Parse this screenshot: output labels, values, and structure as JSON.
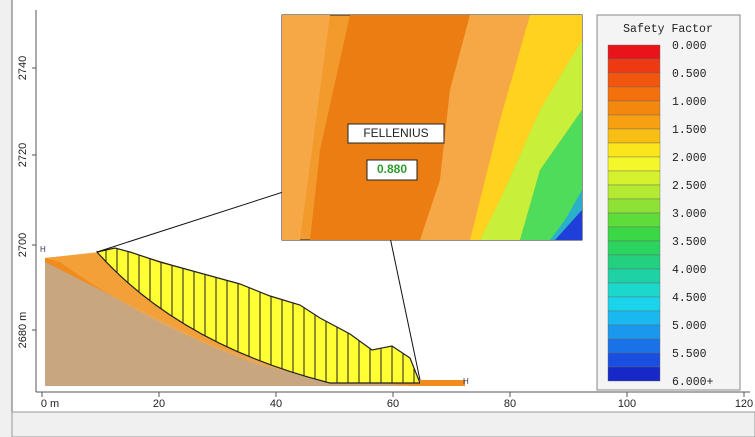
{
  "y_axis_labels": [
    "2740",
    "2720",
    "2700",
    "2680 m"
  ],
  "x_axis_labels": [
    "0 m",
    "20",
    "40",
    "60",
    "80",
    "100",
    "120"
  ],
  "legend": {
    "title": "Safety Factor",
    "labels": [
      "0.000",
      "0.500",
      "1.000",
      "1.500",
      "2.000",
      "2.500",
      "3.000",
      "3.500",
      "4.000",
      "4.500",
      "5.000",
      "5.500",
      "6.000+"
    ]
  },
  "method": "FELLENIUS",
  "safety_factor": "0.880"
}
